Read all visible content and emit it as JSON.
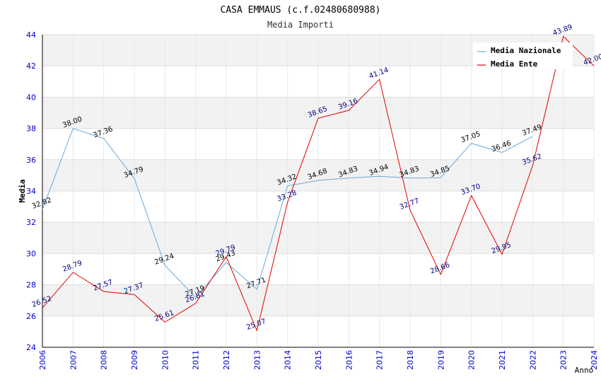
{
  "chart_data": {
    "type": "line",
    "title": "CASA EMMAUS (c.f.02480680988)",
    "subtitle": "Media Importi",
    "xlabel": "Anno",
    "ylabel": "Media",
    "ylim": [
      24,
      44
    ],
    "yticks": [
      "24",
      "26",
      "28",
      "30",
      "32",
      "34",
      "36",
      "38",
      "40",
      "42",
      "44"
    ],
    "x": [
      "2006",
      "2007",
      "2008",
      "2009",
      "2010",
      "2011",
      "2012",
      "2013",
      "2014",
      "2015",
      "2016",
      "2017",
      "2018",
      "2019",
      "2020",
      "2021",
      "2022",
      "2023",
      "2024"
    ],
    "grid": "horizontal bands",
    "legend_position": "top-right",
    "series": [
      {
        "name": "Media Nazionale",
        "color": "#6aa8d8",
        "values": [
          32.82,
          38.0,
          37.36,
          34.79,
          29.24,
          27.19,
          29.43,
          27.71,
          34.32,
          34.68,
          34.83,
          34.94,
          34.83,
          34.85,
          37.05,
          36.46,
          37.49,
          null,
          null
        ],
        "labels": [
          "32.82",
          "38.00",
          "37.36",
          "34.79",
          "29.24",
          "27.19",
          "29.43",
          "27.71",
          "34.32",
          "34.68",
          "34.83",
          "34.94",
          "34.83",
          "34.85",
          "37.05",
          "36.46",
          "37.49",
          "",
          ""
        ]
      },
      {
        "name": "Media Ente",
        "color": "#e00000",
        "values": [
          26.52,
          28.79,
          27.57,
          27.37,
          25.61,
          26.81,
          29.79,
          25.07,
          33.28,
          38.65,
          39.16,
          41.14,
          32.77,
          28.66,
          33.7,
          29.95,
          35.62,
          43.89,
          42.0
        ],
        "labels": [
          "26.52",
          "28.79",
          "27.57",
          "27.37",
          "25.61",
          "26.81",
          "29.79",
          "25.07",
          "33.28",
          "38.65",
          "39.16",
          "41.14",
          "32.77",
          "28.66",
          "33.70",
          "29.95",
          "35.62",
          "43.89",
          "42.00"
        ]
      }
    ]
  }
}
